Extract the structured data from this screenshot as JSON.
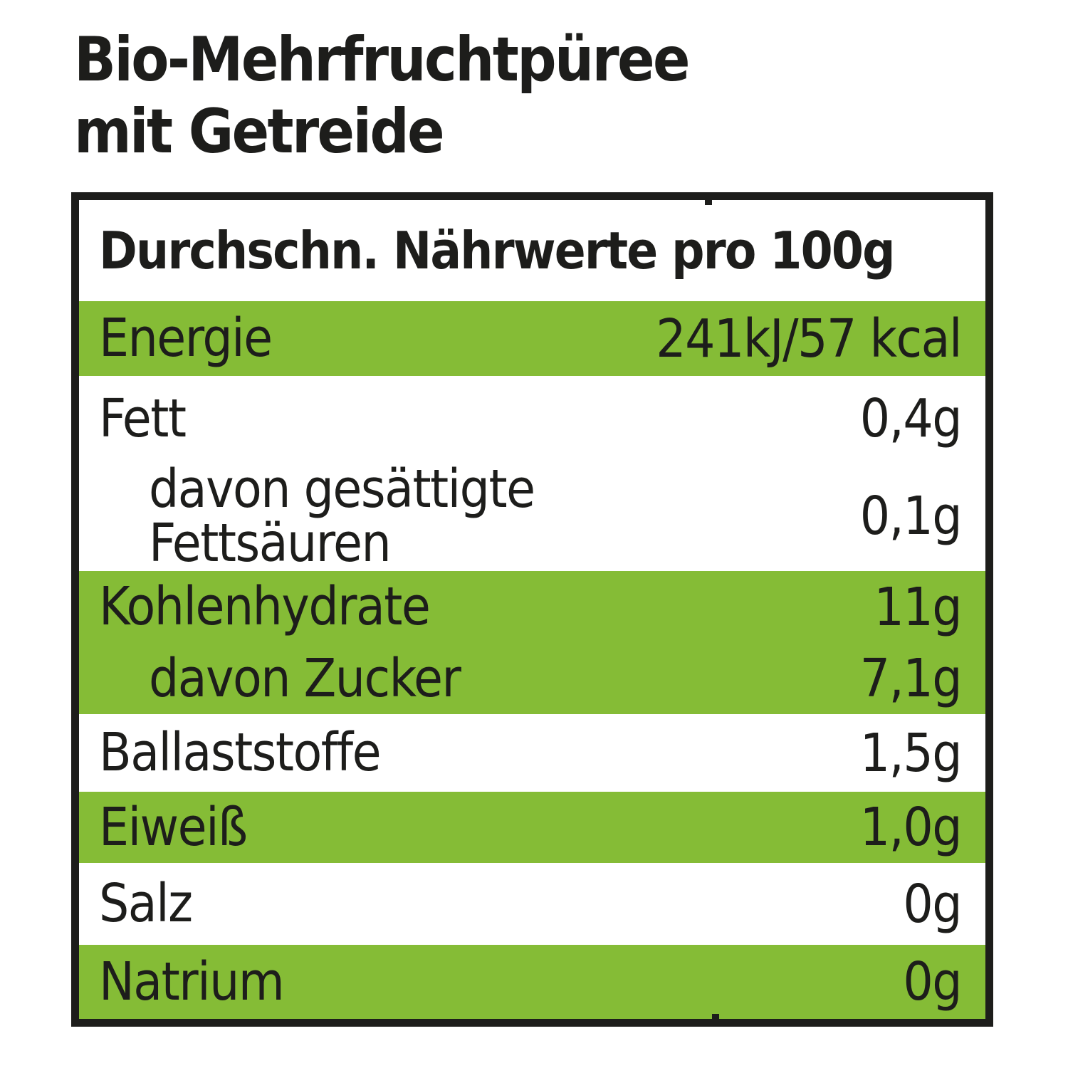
{
  "product": {
    "title_line1": "Bio-Mehrfruchtpüree",
    "title_line2": "mit Getreide"
  },
  "nutrition_table": {
    "header": "Durchschn. Nährwerte pro 100g",
    "rows": [
      {
        "label": "Energie",
        "value": "241kJ/57 kcal"
      },
      {
        "label": "Fett",
        "value": "0,4g"
      },
      {
        "label": "davon gesättigte\nFettsäuren",
        "value": "0,1g"
      },
      {
        "label": "Kohlenhydrate",
        "value": "11g"
      },
      {
        "label": "davon Zucker",
        "value": "7,1g"
      },
      {
        "label": "Ballaststoffe",
        "value": "1,5g"
      },
      {
        "label": "Eiweiß",
        "value": "1,0g"
      },
      {
        "label": "Salz",
        "value": "0g"
      },
      {
        "label": "Natrium",
        "value": "0g"
      }
    ]
  },
  "colors": {
    "accent_green": "#85bc36",
    "text_black": "#1d1d1b",
    "background": "#ffffff"
  }
}
